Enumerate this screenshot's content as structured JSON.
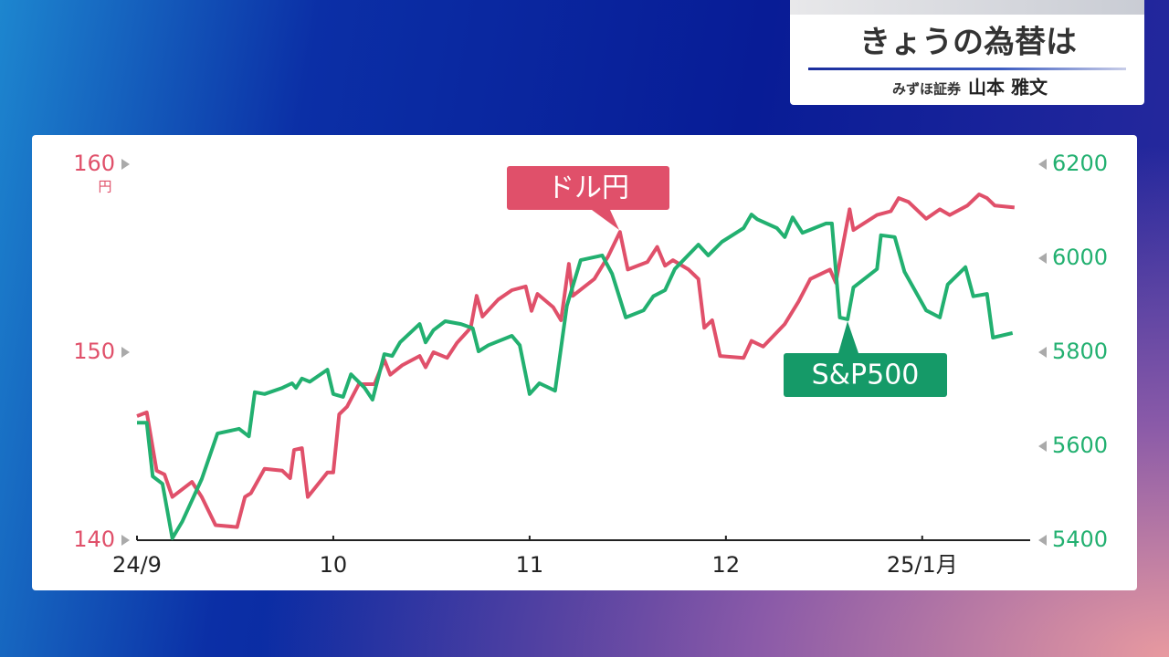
{
  "header": {
    "title": "きょうの為替は",
    "company": "みずほ証券",
    "person": "山本 雅文"
  },
  "chart_data": {
    "type": "line",
    "y_unit": "円",
    "xlim": [
      0,
      4.55
    ],
    "xticks": [
      {
        "value": 0,
        "label": "24/9"
      },
      {
        "value": 1,
        "label": "10"
      },
      {
        "value": 2,
        "label": "11"
      },
      {
        "value": 3,
        "label": "12"
      },
      {
        "value": 4,
        "label": "25/1月"
      }
    ],
    "ylim": [
      140,
      160
    ],
    "yticks": [
      140,
      150,
      160
    ],
    "y2lim": [
      5400,
      6200
    ],
    "y2ticks": [
      5400,
      5600,
      5800,
      6000,
      6200
    ],
    "annotations": [
      {
        "text": "ドル円",
        "series": 0
      },
      {
        "text": "S&P500",
        "series": 1
      }
    ],
    "series": [
      {
        "name": "ドル円",
        "color": "#e0506a",
        "axis": "y",
        "x": [
          0,
          0.05,
          0.1,
          0.14,
          0.18,
          0.28,
          0.33,
          0.4,
          0.51,
          0.55,
          0.58,
          0.65,
          0.74,
          0.78,
          0.8,
          0.84,
          0.87,
          0.97,
          1.0,
          1.03,
          1.07,
          1.13,
          1.21,
          1.26,
          1.29,
          1.35,
          1.44,
          1.47,
          1.51,
          1.58,
          1.63,
          1.7,
          1.73,
          1.76,
          1.84,
          1.91,
          1.98,
          2.01,
          2.04,
          2.12,
          2.16,
          2.2,
          2.22,
          2.33,
          2.4,
          2.46,
          2.5,
          2.6,
          2.65,
          2.69,
          2.73,
          2.81,
          2.86,
          2.89,
          2.93,
          2.97,
          3.09,
          3.13,
          3.19,
          3.3,
          3.37,
          3.43,
          3.53,
          3.56,
          3.63,
          3.65,
          3.77,
          3.84,
          3.88,
          3.93,
          4.02,
          4.09,
          4.14,
          4.23,
          4.29,
          4.33,
          4.37,
          4.47
        ],
        "values": [
          146.6,
          146.8,
          143.7,
          143.5,
          142.3,
          143.1,
          142.3,
          140.8,
          140.7,
          142.3,
          142.5,
          143.8,
          143.7,
          143.3,
          144.8,
          144.9,
          142.3,
          143.6,
          143.6,
          146.7,
          147.1,
          148.3,
          148.3,
          149.6,
          148.8,
          149.3,
          149.8,
          149.2,
          150.0,
          149.7,
          150.5,
          151.3,
          153.0,
          151.9,
          152.8,
          153.3,
          153.5,
          152.2,
          153.1,
          152.4,
          151.7,
          154.7,
          153.0,
          153.9,
          155.1,
          156.4,
          154.4,
          154.8,
          155.6,
          154.6,
          154.9,
          154.4,
          153.9,
          151.3,
          151.7,
          149.8,
          149.7,
          150.6,
          150.3,
          151.5,
          152.7,
          153.9,
          154.4,
          153.7,
          157.6,
          156.5,
          157.3,
          157.5,
          158.2,
          158.0,
          157.1,
          157.6,
          157.3,
          157.8,
          158.4,
          158.2,
          157.8,
          157.7
        ]
      },
      {
        "name": "S&P500",
        "color": "#22b070",
        "axis": "y2",
        "x": [
          0,
          0.05,
          0.08,
          0.13,
          0.18,
          0.23,
          0.33,
          0.41,
          0.52,
          0.57,
          0.6,
          0.65,
          0.74,
          0.79,
          0.81,
          0.84,
          0.88,
          0.97,
          1.0,
          1.05,
          1.09,
          1.16,
          1.2,
          1.26,
          1.3,
          1.34,
          1.44,
          1.47,
          1.51,
          1.57,
          1.65,
          1.71,
          1.74,
          1.79,
          1.91,
          1.95,
          2.0,
          2.05,
          2.13,
          2.19,
          2.26,
          2.37,
          2.42,
          2.49,
          2.58,
          2.63,
          2.69,
          2.74,
          2.86,
          2.91,
          2.98,
          3.09,
          3.13,
          3.16,
          3.26,
          3.3,
          3.34,
          3.39,
          3.51,
          3.54,
          3.58,
          3.62,
          3.65,
          3.77,
          3.79,
          3.86,
          3.91,
          4.02,
          4.09,
          4.13,
          4.22,
          4.26,
          4.33,
          4.36,
          4.46
        ],
        "values": [
          5650,
          5650,
          5536,
          5520,
          5404,
          5439,
          5530,
          5627,
          5637,
          5621,
          5715,
          5711,
          5724,
          5734,
          5724,
          5744,
          5737,
          5763,
          5711,
          5705,
          5753,
          5724,
          5699,
          5796,
          5792,
          5821,
          5860,
          5821,
          5847,
          5866,
          5860,
          5851,
          5802,
          5815,
          5835,
          5815,
          5711,
          5734,
          5718,
          5899,
          5996,
          6006,
          5967,
          5874,
          5889,
          5919,
          5932,
          5977,
          6029,
          6006,
          6035,
          6064,
          6093,
          6083,
          6064,
          6045,
          6087,
          6054,
          6074,
          6074,
          5874,
          5870,
          5938,
          5977,
          6049,
          6045,
          5971,
          5889,
          5874,
          5944,
          5981,
          5919,
          5924,
          5831,
          5841
        ]
      }
    ]
  }
}
